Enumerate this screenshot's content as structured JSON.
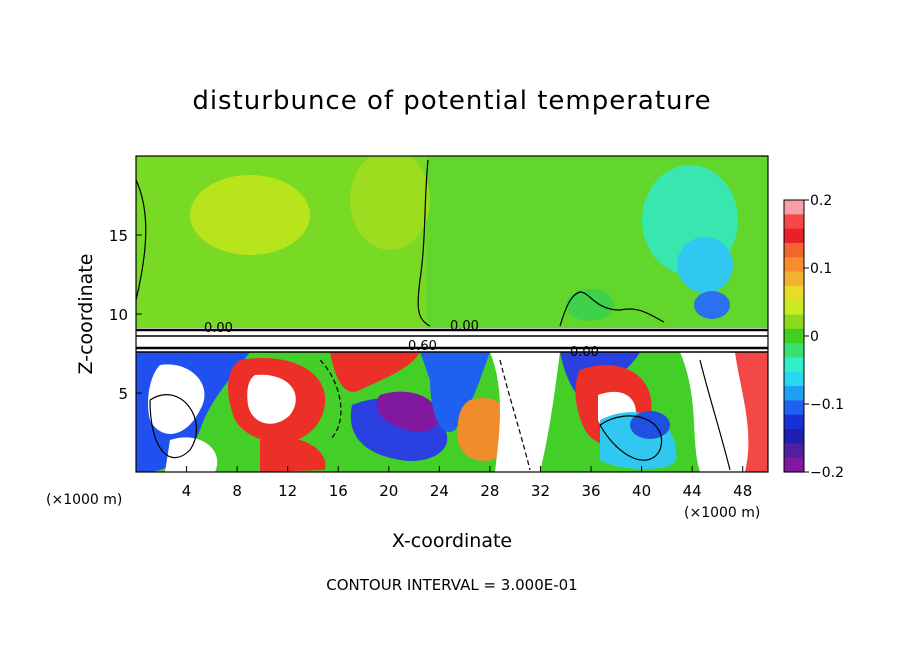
{
  "title": "disturbunce of potential temperature",
  "footer": "CONTOUR INTERVAL = 3.000E-01",
  "chart_data": {
    "type": "heatmap",
    "title": "disturbunce of potential temperature",
    "xlabel": "X-coordinate",
    "ylabel": "Z-coordinate",
    "x_unit": "(×1000 m)",
    "xlim": [
      0,
      50
    ],
    "ylim": [
      0,
      20
    ],
    "x_ticks": [
      4,
      8,
      12,
      16,
      20,
      24,
      28,
      32,
      36,
      40,
      44,
      48
    ],
    "y_ticks": [
      5,
      10,
      15
    ],
    "colorbar": {
      "range": [
        -0.2,
        0.2
      ],
      "ticks": [
        0.2,
        0.1,
        0,
        -0.1,
        -0.2
      ],
      "tick_labels": [
        "0.2",
        "0.1",
        "0",
        "−0.1",
        "−0.2"
      ],
      "colors": [
        "#f8a0a8",
        "#f44848",
        "#e8202a",
        "#f0662c",
        "#f88c2e",
        "#f4b030",
        "#e8dc28",
        "#c8ec20",
        "#8cd81c",
        "#40d020",
        "#38e070",
        "#30f0c8",
        "#28d8f0",
        "#20a0f4",
        "#2060f0",
        "#1830d8",
        "#2020b0",
        "#5020a0",
        "#8018a0"
      ]
    },
    "contour_labels": [
      "0.00",
      "0.00",
      "0.60",
      "0.00"
    ],
    "contour_interval": "3.000E-01"
  }
}
